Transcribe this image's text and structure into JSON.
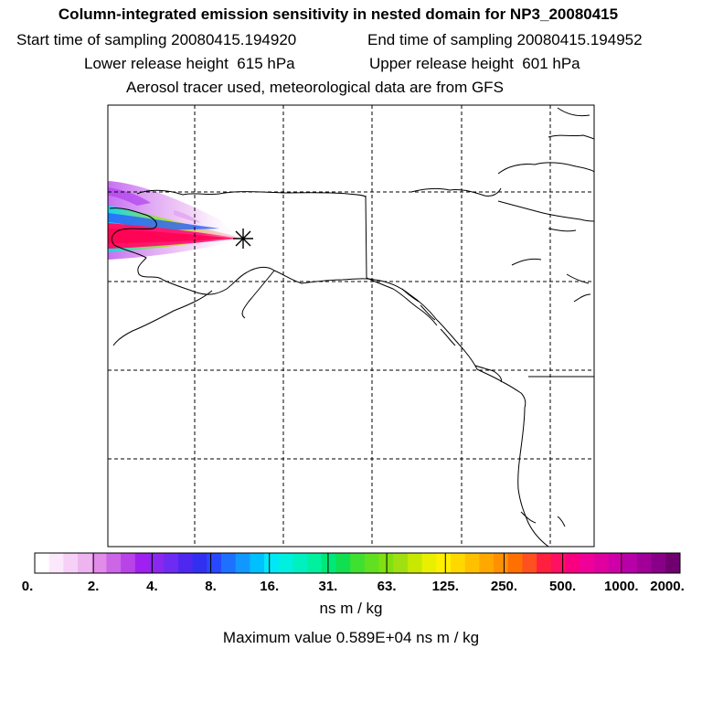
{
  "header": {
    "title": "Column-integrated emission sensitivity in nested domain for NP3_20080415",
    "start_label": "Start time of sampling",
    "start_value": "20080415.194920",
    "end_label": "End time of sampling",
    "end_value": "20080415.194952",
    "lower_label": "Lower release height",
    "lower_value": "615 hPa",
    "upper_label": "Upper release height",
    "upper_value": "601 hPa",
    "note": "Aerosol tracer used, meteorological data are from GFS"
  },
  "colorbar": {
    "labels": [
      "0.",
      "2.",
      "4.",
      "8.",
      "16.",
      "31.",
      "63.",
      "125.",
      "250.",
      "500.",
      "1000.",
      "2000."
    ],
    "colors": [
      "#ffffff",
      "#fce8fc",
      "#f6d0f6",
      "#eeb4f0",
      "#e08ce8",
      "#cc66e6",
      "#b844e8",
      "#a020f0",
      "#8a28f0",
      "#6e2cf2",
      "#4f28f0",
      "#3230f0",
      "#2848ff",
      "#1e70ff",
      "#1098ff",
      "#00c0ff",
      "#00e8f8",
      "#00f0e0",
      "#00f0c0",
      "#00f0a0",
      "#00e878",
      "#10e050",
      "#40e030",
      "#60e020",
      "#80e010",
      "#a0e010",
      "#c8e800",
      "#e8f000",
      "#fff000",
      "#ffd800",
      "#ffc000",
      "#ffa800",
      "#ff9000",
      "#ff7000",
      "#ff5020",
      "#ff2040",
      "#ff1060",
      "#f80080",
      "#f00098",
      "#e000a0",
      "#d000a8",
      "#b800a8",
      "#a00098",
      "#880088",
      "#700070"
    ],
    "units": "ns m / kg",
    "max_label": "Maximum value",
    "max_value": "0.589E+04 ns m / kg"
  },
  "map": {
    "coastline_color": "#000000",
    "grid": "dashed",
    "release_marker": "asterisk-icon"
  }
}
